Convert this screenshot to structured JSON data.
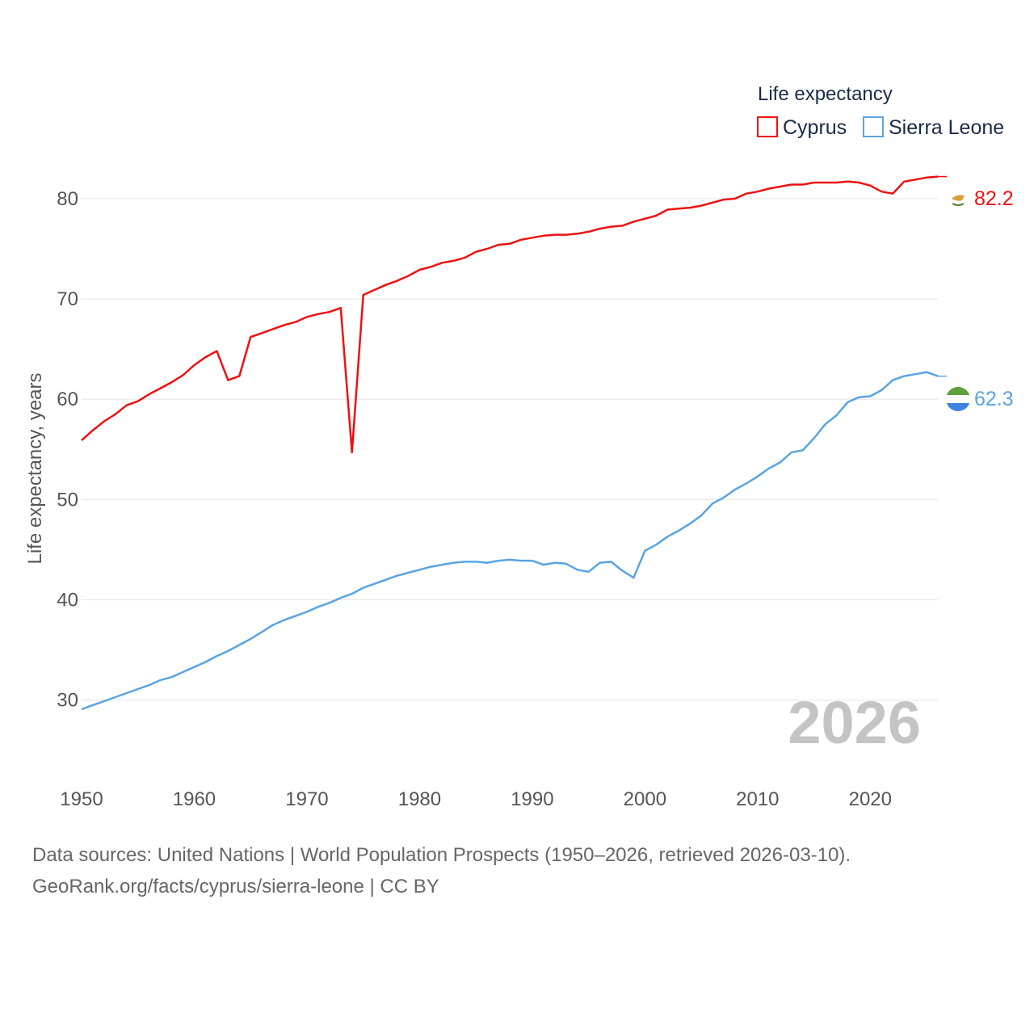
{
  "chart_data": {
    "type": "line",
    "legend_title": "Life expectancy",
    "ylabel": "Life expectancy, years",
    "xlabel": "",
    "xlim": [
      1950,
      2026
    ],
    "ylim": [
      24.5,
      84.5
    ],
    "xticks": [
      1950,
      1960,
      1970,
      1980,
      1990,
      2000,
      2010,
      2020
    ],
    "yticks": [
      30,
      40,
      50,
      60,
      70,
      80
    ],
    "grid": true,
    "legend_position": "top-right",
    "current_year": "2026",
    "series": [
      {
        "name": "Cyprus",
        "color": "#ee1111",
        "end_label": "82.2",
        "x_start": 1950,
        "values": [
          55.9,
          56.9,
          57.8,
          58.5,
          59.4,
          59.8,
          60.5,
          61.1,
          61.7,
          62.4,
          63.4,
          64.2,
          64.8,
          61.9,
          62.3,
          66.2,
          66.6,
          67.0,
          67.4,
          67.7,
          68.2,
          68.5,
          68.7,
          69.1,
          54.7,
          70.4,
          70.9,
          71.4,
          71.8,
          72.3,
          72.9,
          73.2,
          73.6,
          73.8,
          74.1,
          74.7,
          75.0,
          75.4,
          75.5,
          75.9,
          76.1,
          76.3,
          76.4,
          76.4,
          76.5,
          76.7,
          77.0,
          77.2,
          77.3,
          77.7,
          78.0,
          78.3,
          78.9,
          79.0,
          79.1,
          79.3,
          79.6,
          79.9,
          80.0,
          80.5,
          80.7,
          81.0,
          81.2,
          81.4,
          81.4,
          81.6,
          81.6,
          81.6,
          81.7,
          81.6,
          81.3,
          80.7,
          80.5,
          81.7,
          81.9,
          82.1,
          82.2
        ]
      },
      {
        "name": "Sierra Leone",
        "color": "#5aa3e3",
        "end_label": "62.3",
        "x_start": 1950,
        "values": [
          29.1,
          29.5,
          29.9,
          30.3,
          30.7,
          31.1,
          31.5,
          32.0,
          32.3,
          32.8,
          33.3,
          33.8,
          34.4,
          34.9,
          35.5,
          36.1,
          36.8,
          37.5,
          38.0,
          38.4,
          38.8,
          39.3,
          39.7,
          40.2,
          40.6,
          41.2,
          41.6,
          42.0,
          42.4,
          42.7,
          43.0,
          43.3,
          43.5,
          43.7,
          43.8,
          43.8,
          43.7,
          43.9,
          44.0,
          43.9,
          43.9,
          43.5,
          43.7,
          43.6,
          43.0,
          42.8,
          43.7,
          43.8,
          42.9,
          42.2,
          44.9,
          45.5,
          46.3,
          46.9,
          47.6,
          48.4,
          49.6,
          50.2,
          51.0,
          51.6,
          52.3,
          53.1,
          53.7,
          54.7,
          54.9,
          56.1,
          57.5,
          58.4,
          59.7,
          60.2,
          60.3,
          60.9,
          61.9,
          62.3,
          62.5,
          62.7,
          62.3
        ]
      }
    ]
  },
  "footer": {
    "line1": "Data sources: United Nations | World Population Prospects (1950–2026, retrieved 2026-03-10).",
    "line2": "GeoRank.org/facts/cyprus/sierra-leone | CC BY"
  }
}
